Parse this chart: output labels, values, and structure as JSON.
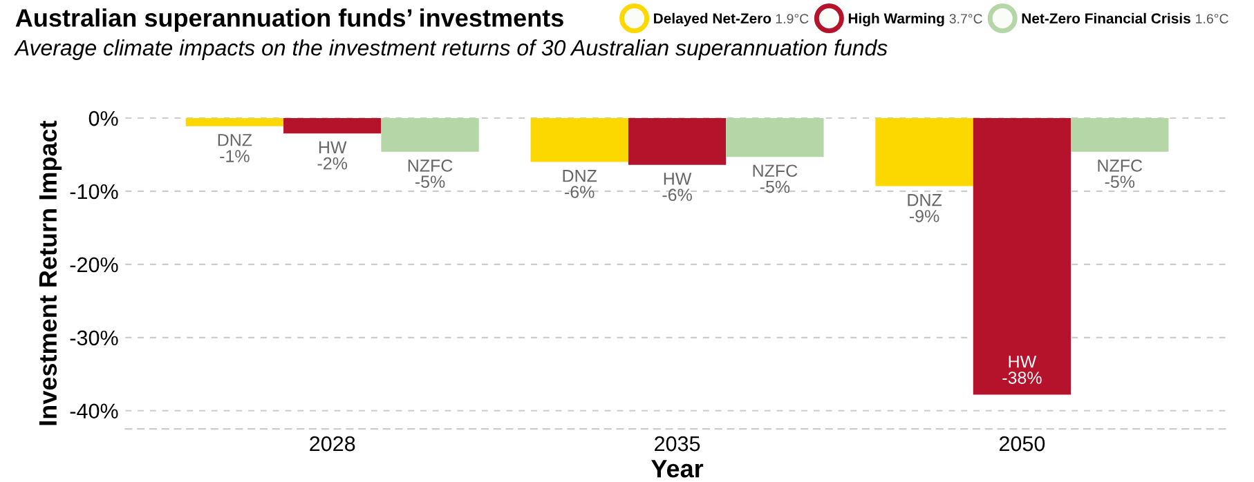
{
  "chart_data": {
    "type": "bar",
    "title": "Australian superannuation funds’ investments",
    "subtitle": "Average climate impacts on the investment returns of 30 Australian superannuation funds",
    "xlabel": "Year",
    "ylabel": "Investment Return Impact",
    "categories": [
      "2028",
      "2035",
      "2050"
    ],
    "series": [
      {
        "name": "Delayed Net-Zero",
        "color": "#fcd800",
        "values": [
          -1.1,
          -6.0,
          -9.3
        ],
        "value_labels": [
          "DNZ\n-1%",
          "DNZ\n-6%",
          "DNZ\n-9%"
        ]
      },
      {
        "name": "High Warming",
        "color": "#b5132b",
        "values": [
          -2.1,
          -6.4,
          -37.8
        ],
        "value_labels": [
          "HW\n-2%",
          "HW\n-6%",
          "HW\n-38%"
        ]
      },
      {
        "name": "Net-Zero Financial Crisis",
        "color": "#b5d7a8",
        "values": [
          -4.6,
          -5.3,
          -4.6
        ],
        "value_labels": [
          "NZFC\n-5%",
          "NZFC\n-5%",
          "NZFC\n-5%"
        ]
      }
    ],
    "annotations": [
      "1.9°C",
      "3.7°C",
      "1.6°C"
    ],
    "ylim": [
      -42.5,
      0
    ],
    "yticks": [
      {
        "value": 0,
        "label": "0%"
      },
      {
        "value": -10,
        "label": "-10%"
      },
      {
        "value": -20,
        "label": "-20%"
      },
      {
        "value": -30,
        "label": "-30%"
      },
      {
        "value": -40,
        "label": "-40%"
      }
    ],
    "grid": "y",
    "legend": "top right"
  }
}
